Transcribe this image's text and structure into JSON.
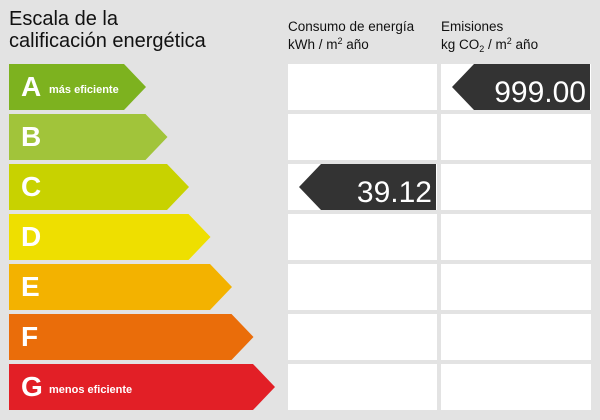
{
  "title_line1": "Escala de la",
  "title_line2": "calificación energética",
  "consumo": {
    "line1": "Consumo de energía",
    "line2_prefix": "kWh / m",
    "line2_sup": "2",
    "line2_suffix": " año"
  },
  "emisiones": {
    "line1": "Emisiones",
    "line2_prefix": "kg CO",
    "line2_sub": "2",
    "line2_mid": " / m",
    "line2_sup": "2",
    "line2_suffix": " año"
  },
  "ratings": [
    {
      "letter": "A",
      "note": "más eficiente",
      "color": "#7db21f"
    },
    {
      "letter": "B",
      "note": "",
      "color": "#a1c43a"
    },
    {
      "letter": "C",
      "note": "",
      "color": "#c8d200"
    },
    {
      "letter": "D",
      "note": "",
      "color": "#eedf00"
    },
    {
      "letter": "E",
      "note": "",
      "color": "#f3b200"
    },
    {
      "letter": "F",
      "note": "",
      "color": "#ea6d0a"
    },
    {
      "letter": "G",
      "note": "menos eficiente",
      "color": "#e21f26"
    }
  ],
  "consumo_value": "39.12",
  "consumo_rating": "C",
  "emisiones_value": "999.00",
  "emisiones_rating": "A",
  "indicator_color": "#333333"
}
